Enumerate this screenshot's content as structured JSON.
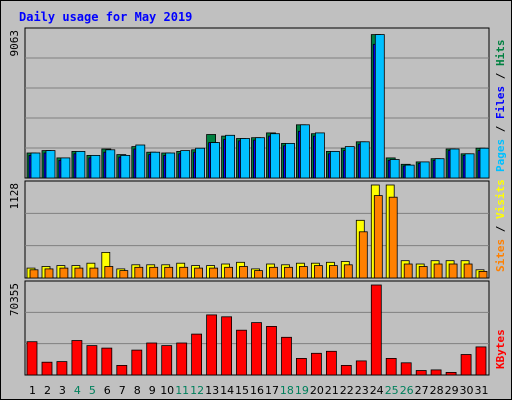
{
  "chart_data": [
    {
      "type": "bar",
      "title": "Daily usage for May 2019",
      "ymax_label": "9063",
      "ylim": [
        0,
        9063
      ],
      "legend": [
        "Pages",
        "Files",
        "Hits"
      ],
      "legend_separator": " / ",
      "categories": [
        "1",
        "2",
        "3",
        "4",
        "5",
        "6",
        "7",
        "8",
        "9",
        "10",
        "11",
        "12",
        "13",
        "14",
        "15",
        "16",
        "17",
        "18",
        "19",
        "20",
        "21",
        "22",
        "23",
        "24",
        "25",
        "26",
        "27",
        "28",
        "29",
        "30",
        "31"
      ],
      "series": [
        {
          "name": "Hits",
          "color": "#008040",
          "values": [
            1550,
            1700,
            1250,
            1650,
            1400,
            1800,
            1450,
            1950,
            1600,
            1550,
            1650,
            1750,
            2700,
            2600,
            2450,
            2500,
            2800,
            2150,
            3300,
            2750,
            1650,
            1850,
            2250,
            8900,
            1250,
            850,
            1000,
            1200,
            1800,
            1500,
            1850
          ]
        },
        {
          "name": "Files",
          "color": "#0000ff",
          "values": [
            1400,
            1550,
            1100,
            1500,
            1250,
            1600,
            1300,
            1800,
            1450,
            1400,
            1500,
            1600,
            2200,
            2400,
            2300,
            2350,
            2600,
            2000,
            2900,
            2600,
            1500,
            1700,
            2100,
            8300,
            1100,
            750,
            900,
            1100,
            1700,
            1400,
            1700
          ]
        },
        {
          "name": "Pages",
          "color": "#00c0ff",
          "values": [
            1550,
            1700,
            1250,
            1650,
            1400,
            1750,
            1400,
            2050,
            1600,
            1550,
            1700,
            1850,
            2200,
            2650,
            2450,
            2500,
            2750,
            2150,
            3300,
            2800,
            1650,
            1950,
            2250,
            8900,
            1150,
            800,
            1000,
            1200,
            1800,
            1500,
            1850
          ]
        }
      ]
    },
    {
      "type": "bar",
      "ymax_label": "1128",
      "ylim": [
        0,
        1128
      ],
      "legend": [
        "Sites",
        "Visits"
      ],
      "legend_separator": " / ",
      "categories": [
        "1",
        "2",
        "3",
        "4",
        "5",
        "6",
        "7",
        "8",
        "9",
        "10",
        "11",
        "12",
        "13",
        "14",
        "15",
        "16",
        "17",
        "18",
        "19",
        "20",
        "21",
        "22",
        "23",
        "24",
        "25",
        "26",
        "27",
        "28",
        "29",
        "30",
        "31"
      ],
      "series": [
        {
          "name": "Visits",
          "color": "#ffff00",
          "values": [
            120,
            140,
            150,
            150,
            180,
            310,
            110,
            160,
            160,
            160,
            180,
            150,
            150,
            170,
            190,
            110,
            170,
            160,
            180,
            180,
            190,
            200,
            700,
            1128,
            1128,
            210,
            170,
            210,
            210,
            210,
            100
          ]
        },
        {
          "name": "Sites",
          "color": "#ff8000",
          "values": [
            100,
            110,
            120,
            120,
            120,
            140,
            90,
            130,
            130,
            130,
            130,
            120,
            120,
            130,
            140,
            90,
            130,
            130,
            140,
            150,
            150,
            160,
            560,
            1000,
            980,
            170,
            140,
            170,
            170,
            170,
            80
          ]
        }
      ]
    },
    {
      "type": "bar",
      "ymax_label": "70355",
      "ylim": [
        0,
        70355
      ],
      "legend": [
        "KBytes"
      ],
      "legend_separator": "",
      "categories": [
        "1",
        "2",
        "3",
        "4",
        "5",
        "6",
        "7",
        "8",
        "9",
        "10",
        "11",
        "12",
        "13",
        "14",
        "15",
        "16",
        "17",
        "18",
        "19",
        "20",
        "21",
        "22",
        "23",
        "24",
        "25",
        "26",
        "27",
        "28",
        "29",
        "30",
        "31"
      ],
      "series": [
        {
          "name": "KBytes",
          "color": "#ff0000",
          "values": [
            26000,
            10000,
            10500,
            27000,
            23000,
            21000,
            7500,
            19500,
            25000,
            23000,
            25000,
            32000,
            47000,
            45500,
            35000,
            41000,
            38000,
            29500,
            13000,
            17000,
            18500,
            7500,
            11000,
            70355,
            13000,
            9500,
            3500,
            4000,
            2000,
            16000,
            22000
          ]
        }
      ]
    }
  ],
  "x_axis": {
    "labels": [
      "1",
      "2",
      "3",
      "4",
      "5",
      "6",
      "7",
      "8",
      "9",
      "10",
      "11",
      "12",
      "13",
      "14",
      "15",
      "16",
      "17",
      "18",
      "19",
      "20",
      "21",
      "22",
      "23",
      "24",
      "25",
      "26",
      "27",
      "28",
      "29",
      "30",
      "31"
    ],
    "weekend_color": "#00805c",
    "weekday_color": "#000000",
    "weekend_days": [
      4,
      5,
      11,
      12,
      18,
      19,
      25,
      26
    ]
  },
  "colors": {
    "background": "#c0c0c0",
    "plot_background": "#c0c0c0",
    "title": "#0000ff",
    "gridline": "#808080",
    "bar_outline": "#000000"
  }
}
